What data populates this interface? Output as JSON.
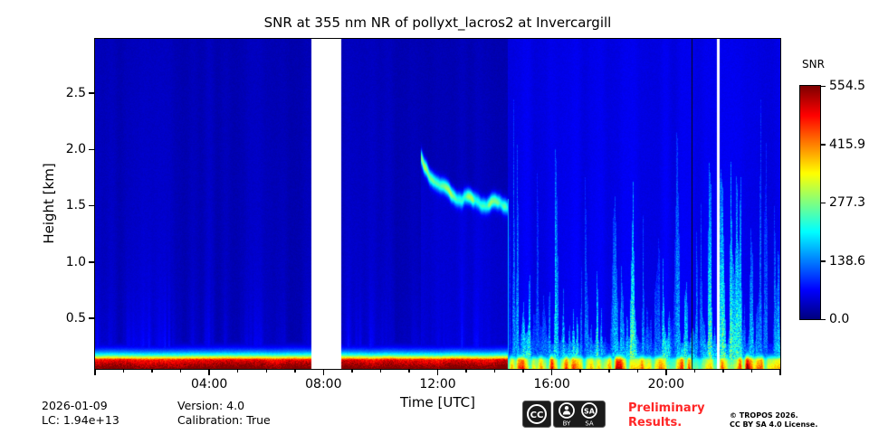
{
  "title": "SNR at 355 nm NR of pollyxt_lacros2 at Invercargill",
  "chart_data": {
    "type": "heatmap",
    "title": "SNR at 355 nm NR of pollyxt_lacros2 at Invercargill",
    "xlabel": "Time [UTC]",
    "ylabel": "Height [km]",
    "x_range_hours": [
      0,
      24
    ],
    "x_ticks": [
      "04:00",
      "08:00",
      "12:00",
      "16:00",
      "20:00"
    ],
    "x_minor_tick_every_hours": 1,
    "y_range_km": [
      0.05,
      2.98
    ],
    "y_ticks": [
      0.5,
      1.0,
      1.5,
      2.0,
      2.5
    ],
    "grid": false,
    "colorbar": {
      "label": "SNR",
      "vmin": 0.0,
      "vmax": 554.5,
      "ticks": [
        "554.5",
        "415.9",
        "277.3",
        "138.6",
        "0.0"
      ],
      "colormap": "jet",
      "position": "right"
    },
    "data_gaps_hours": [
      [
        7.55,
        8.62
      ],
      [
        21.75,
        21.85
      ]
    ],
    "black_line_hour": 20.9,
    "surface_layer": {
      "top_km": 0.14,
      "decay_km": 0.058,
      "max_snr": 554.5,
      "patchy_after_hour": 14.45
    },
    "descending_layer": {
      "start_hour": 11.4,
      "end_hour": 14.45,
      "start_km": 1.9,
      "end_km": 1.5,
      "peak_snr": 220
    },
    "convective_streaks": {
      "start_hour": 14.45,
      "end_hour": 24,
      "max_top_km": 2.95,
      "typical_snr": 170
    },
    "morning_streaks": {
      "start_hour": 0,
      "end_hour": 7.55,
      "top_km": 0.8,
      "typical_snr": 90
    }
  },
  "footer": {
    "date": "2026-01-09",
    "lc": "LC: 1.94e+13",
    "version": "Version: 4.0",
    "calibration": "Calibration: True",
    "preliminary_line1": "Preliminary",
    "preliminary_line2": "Results.",
    "copyright": "© TROPOS 2026.",
    "license": "CC BY SA 4.0 License.",
    "badge": {
      "cc": "CC",
      "by": "BY",
      "sa": "SA"
    }
  },
  "colors": {
    "preliminary": "#ff2626",
    "background": "#ffffff",
    "axis": "#000000"
  }
}
